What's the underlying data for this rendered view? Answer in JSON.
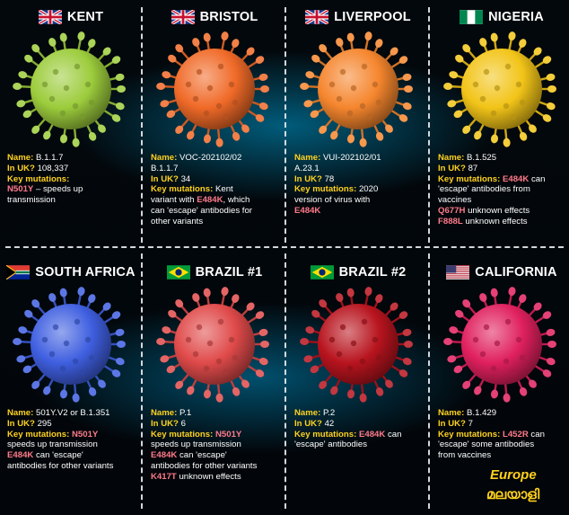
{
  "cards": [
    {
      "flag": "uk",
      "title": "KENT",
      "color": "#9ccc3c",
      "lines": [
        [
          {
            "c": "lbl",
            "t": "Name: "
          },
          {
            "c": "txt",
            "t": "B.1.1.7"
          }
        ],
        [
          {
            "c": "lbl",
            "t": "In UK? "
          },
          {
            "c": "txt",
            "t": "108,337"
          }
        ],
        [
          {
            "c": "lbl",
            "t": "Key mutations:"
          }
        ],
        [
          {
            "c": "mut",
            "t": "N501Y"
          },
          {
            "c": "txt",
            "t": " – speeds up"
          }
        ],
        [
          {
            "c": "txt",
            "t": "transmission"
          }
        ]
      ]
    },
    {
      "flag": "uk",
      "title": "BRISTOL",
      "color": "#f06a28",
      "lines": [
        [
          {
            "c": "lbl",
            "t": "Name: "
          },
          {
            "c": "txt",
            "t": "VOC-202102/02"
          }
        ],
        [
          {
            "c": "txt",
            "t": "B.1.1.7"
          }
        ],
        [
          {
            "c": "lbl",
            "t": "In UK? "
          },
          {
            "c": "txt",
            "t": "34"
          }
        ],
        [
          {
            "c": "lbl",
            "t": "Key mutations: "
          },
          {
            "c": "txt",
            "t": "Kent"
          }
        ],
        [
          {
            "c": "txt",
            "t": "variant with "
          },
          {
            "c": "mut",
            "t": "E484K"
          },
          {
            "c": "txt",
            "t": ", which"
          }
        ],
        [
          {
            "c": "txt",
            "t": "can 'escape' antibodies for"
          }
        ],
        [
          {
            "c": "txt",
            "t": "other variants"
          }
        ]
      ]
    },
    {
      "flag": "uk",
      "title": "LIVERPOOL",
      "color": "#f5862e",
      "lines": [
        [
          {
            "c": "lbl",
            "t": "Name: "
          },
          {
            "c": "txt",
            "t": "VUI-202102/01"
          }
        ],
        [
          {
            "c": "txt",
            "t": "A.23.1"
          }
        ],
        [
          {
            "c": "lbl",
            "t": "In UK? "
          },
          {
            "c": "txt",
            "t": "78"
          }
        ],
        [
          {
            "c": "lbl",
            "t": "Key mutations: "
          },
          {
            "c": "txt",
            "t": "2020"
          }
        ],
        [
          {
            "c": "txt",
            "t": "version of virus with"
          }
        ],
        [
          {
            "c": "mut",
            "t": "E484K"
          }
        ]
      ]
    },
    {
      "flag": "ng",
      "title": "NIGERIA",
      "color": "#f2c418",
      "lines": [
        [
          {
            "c": "lbl",
            "t": "Name: "
          },
          {
            "c": "txt",
            "t": "B.1.525"
          }
        ],
        [
          {
            "c": "lbl",
            "t": "In UK? "
          },
          {
            "c": "txt",
            "t": "87"
          }
        ],
        [
          {
            "c": "lbl",
            "t": "Key mutations: "
          },
          {
            "c": "mut",
            "t": "E484K"
          },
          {
            "c": "txt",
            "t": " can"
          }
        ],
        [
          {
            "c": "txt",
            "t": "'escape' antibodies from"
          }
        ],
        [
          {
            "c": "txt",
            "t": "vaccines"
          }
        ],
        [
          {
            "c": "mut",
            "t": "Q677H"
          },
          {
            "c": "txt",
            "t": " unknown effects"
          }
        ],
        [
          {
            "c": "mut",
            "t": "F888L"
          },
          {
            "c": "txt",
            "t": " unknown effects"
          }
        ]
      ]
    },
    {
      "flag": "za",
      "title": "SOUTH AFRICA",
      "color": "#3f5fe0",
      "lines": [
        [
          {
            "c": "lbl",
            "t": "Name: "
          },
          {
            "c": "txt",
            "t": "501Y.V2 or B.1.351"
          }
        ],
        [
          {
            "c": "lbl",
            "t": "In UK? "
          },
          {
            "c": "txt",
            "t": "295"
          }
        ],
        [
          {
            "c": "lbl",
            "t": "Key mutations: "
          },
          {
            "c": "mut",
            "t": "N501Y"
          }
        ],
        [
          {
            "c": "txt",
            "t": "speeds up transmission"
          }
        ],
        [
          {
            "c": "mut",
            "t": "E484K"
          },
          {
            "c": "txt",
            "t": " can 'escape'"
          }
        ],
        [
          {
            "c": "txt",
            "t": "antibodies for other variants"
          }
        ]
      ]
    },
    {
      "flag": "br",
      "title": "BRAZIL #1",
      "color": "#e04a4a",
      "lines": [
        [
          {
            "c": "lbl",
            "t": "Name: "
          },
          {
            "c": "txt",
            "t": "P.1"
          }
        ],
        [
          {
            "c": "lbl",
            "t": "In UK? "
          },
          {
            "c": "txt",
            "t": "6"
          }
        ],
        [
          {
            "c": "lbl",
            "t": "Key mutations: "
          },
          {
            "c": "mut",
            "t": "N501Y"
          }
        ],
        [
          {
            "c": "txt",
            "t": "speeds up transmission"
          }
        ],
        [
          {
            "c": "mut",
            "t": "E484K"
          },
          {
            "c": "txt",
            "t": " can 'escape'"
          }
        ],
        [
          {
            "c": "txt",
            "t": "antibodies for other variants"
          }
        ],
        [
          {
            "c": "mut",
            "t": "K417T"
          },
          {
            "c": "txt",
            "t": " unknown effects"
          }
        ]
      ]
    },
    {
      "flag": "br",
      "title": "BRAZIL #2",
      "color": "#b8141e",
      "lines": [
        [
          {
            "c": "lbl",
            "t": "Name: "
          },
          {
            "c": "txt",
            "t": "P.2"
          }
        ],
        [
          {
            "c": "lbl",
            "t": "In UK? "
          },
          {
            "c": "txt",
            "t": "42"
          }
        ],
        [
          {
            "c": "lbl",
            "t": "Key mutations: "
          },
          {
            "c": "mut",
            "t": "E484K"
          },
          {
            "c": "txt",
            "t": " can"
          }
        ],
        [
          {
            "c": "txt",
            "t": "'escape' antibodies"
          }
        ]
      ]
    },
    {
      "flag": "us",
      "title": "CALIFORNIA",
      "color": "#e0205e",
      "lines": [
        [
          {
            "c": "lbl",
            "t": "Name: "
          },
          {
            "c": "txt",
            "t": "B.1.429"
          }
        ],
        [
          {
            "c": "lbl",
            "t": "In UK? "
          },
          {
            "c": "txt",
            "t": "7"
          }
        ],
        [
          {
            "c": "lbl",
            "t": "Key mutations: "
          },
          {
            "c": "mut",
            "t": "L452R"
          },
          {
            "c": "txt",
            "t": " can"
          }
        ],
        [
          {
            "c": "txt",
            "t": "'escape' some antibodies"
          }
        ],
        [
          {
            "c": "txt",
            "t": "from vaccines"
          }
        ]
      ]
    }
  ],
  "logo": {
    "line1": "Europe",
    "line2": "മലയാളി"
  }
}
